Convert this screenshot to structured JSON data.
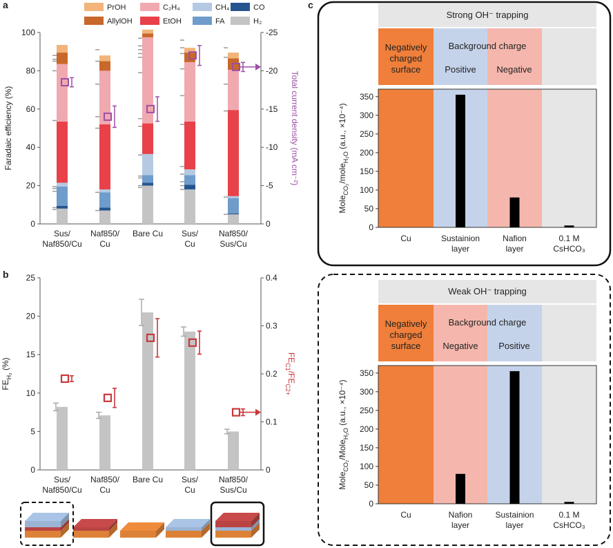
{
  "panel_labels": {
    "a": "a",
    "b": "b",
    "c": "c"
  },
  "colors": {
    "PrOH": "#f2b47a",
    "AllylOH": "#c8682a",
    "C2H4": "#f1a9b0",
    "CH4": "#b5c9e3",
    "CO": "#24558f",
    "EtOH": "#e8414a",
    "FA": "#6f9ccb",
    "H2": "#c4c4c4",
    "orange_block": "#ef7f3a",
    "blue_block": "#c5d3ea",
    "pink_block": "#f5b7ad",
    "grey_block": "#e6e6e6",
    "purple": "#9b4fa6",
    "red_marker": "#c8373c"
  },
  "legend": [
    {
      "key": "PrOH",
      "label": "PrOH"
    },
    {
      "key": "C2H4",
      "label": "C₂H₄"
    },
    {
      "key": "CH4",
      "label": "CH₄"
    },
    {
      "key": "CO",
      "label": "CO"
    },
    {
      "key": "AllylOH",
      "label": "AllylOH"
    },
    {
      "key": "EtOH",
      "label": "EtOH"
    },
    {
      "key": "FA",
      "label": "FA"
    },
    {
      "key": "H2",
      "label": "H₂"
    }
  ],
  "chart_data": [
    {
      "id": "a",
      "type": "bar",
      "stacked": true,
      "categories": [
        [
          "Sus/",
          "Naf850/Cu"
        ],
        [
          "Naf850/",
          "Cu"
        ],
        [
          "Bare Cu"
        ],
        [
          "Sus/",
          "Cu"
        ],
        [
          "Naf850/",
          "Sus/Cu"
        ]
      ],
      "ylabel": "Faradaic efficiency (%)",
      "ylim": [
        0,
        100
      ],
      "yticks": [
        0,
        20,
        40,
        60,
        80,
        100
      ],
      "y2label": "Total current density (mA cm⁻²)",
      "y2lim": [
        0,
        -25
      ],
      "y2ticks": [
        0,
        -5,
        -10,
        -15,
        -20,
        -25
      ],
      "series_order": [
        "H2",
        "CO",
        "FA",
        "CH4",
        "EtOH",
        "C2H4",
        "AllylOH",
        "PrOH"
      ],
      "series": [
        {
          "name": "H2",
          "values": [
            8,
            7,
            20,
            18,
            5
          ]
        },
        {
          "name": "CO",
          "values": [
            1.5,
            1.5,
            1.5,
            2.5,
            0.5
          ]
        },
        {
          "name": "FA",
          "values": [
            10,
            8,
            4,
            5,
            8
          ]
        },
        {
          "name": "CH4",
          "values": [
            2,
            1.5,
            11,
            3,
            1
          ]
        },
        {
          "name": "EtOH",
          "values": [
            32,
            34,
            16,
            25,
            45
          ]
        },
        {
          "name": "C2H4",
          "values": [
            30,
            28,
            45,
            31,
            21
          ]
        },
        {
          "name": "AllylOH",
          "values": [
            6,
            5,
            2,
            5,
            6
          ]
        },
        {
          "name": "PrOH",
          "values": [
            4,
            3,
            2,
            2.5,
            3
          ]
        }
      ],
      "error_bars": [
        {
          "values": [
            7.5,
            8.5,
            17,
            18.5,
            19.5,
            54,
            86,
            80,
            85,
            88
          ]
        },
        {
          "values": [
            7,
            16.5,
            50,
            56,
            73,
            85,
            91
          ]
        },
        {
          "values": [
            19,
            20,
            24,
            25,
            36,
            51,
            55,
            79,
            87,
            89,
            91,
            93,
            97
          ]
        },
        {
          "values": [
            18,
            20,
            22,
            26,
            30,
            52,
            67,
            81,
            89,
            92,
            96
          ]
        },
        {
          "values": [
            5,
            14,
            59,
            73,
            87,
            92
          ]
        }
      ],
      "current_density": [
        -18.5,
        -14,
        -15,
        -22,
        -20.5
      ],
      "current_density_err": [
        0.6,
        1.4,
        1.6,
        1.3,
        0.6
      ],
      "current_arrow_index": 4
    },
    {
      "id": "b",
      "type": "bar",
      "categories": [
        [
          "Sus/",
          "Naf850/Cu"
        ],
        [
          "Naf850/",
          "Cu"
        ],
        [
          "Bare Cu"
        ],
        [
          "Sus/",
          "Cu"
        ],
        [
          "Naf850/",
          "Sus/Cu"
        ]
      ],
      "ylabel": "FE_H2 (%)",
      "ylim": [
        0,
        25
      ],
      "yticks": [
        0,
        5,
        10,
        15,
        20,
        25
      ],
      "values": [
        8.2,
        7.1,
        20.5,
        18,
        5
      ],
      "err": [
        0.5,
        0.4,
        1.7,
        0.6,
        0.3
      ],
      "y2label": "FE_C1/FE_C2+",
      "y2lim": [
        0,
        0.4
      ],
      "y2ticks": [
        0,
        0.1,
        0.2,
        0.3,
        0.4
      ],
      "ratio": [
        0.19,
        0.15,
        0.275,
        0.265,
        0.12
      ],
      "ratio_err": [
        0.006,
        0.02,
        0.04,
        0.024,
        0.007
      ],
      "ratio_arrow_index": 4
    },
    {
      "id": "c-top",
      "type": "bar",
      "title": "Strong OH⁻ trapping",
      "categories": [
        [
          "Cu"
        ],
        [
          "Sustainion",
          "layer"
        ],
        [
          "Nafion",
          "layer"
        ],
        [
          "0.1 M",
          "CsHCO₃"
        ]
      ],
      "band_colors": [
        "orange_block",
        "blue_block",
        "pink_block",
        "grey_block"
      ],
      "values": [
        0,
        355,
        80,
        5
      ],
      "ylabel": "Mole_CO2/mole_H2O (a.u., ×10⁻⁴)",
      "ylim": [
        0,
        370
      ],
      "yticks": [
        0,
        50,
        100,
        150,
        200,
        250,
        300,
        350
      ]
    },
    {
      "id": "c-bottom",
      "type": "bar",
      "title": "Weak OH⁻ trapping",
      "categories": [
        [
          "Cu"
        ],
        [
          "Nafion",
          "layer"
        ],
        [
          "Sustainion",
          "layer"
        ],
        [
          "0.1 M",
          "CsHCO₃"
        ]
      ],
      "band_colors": [
        "orange_block",
        "pink_block",
        "blue_block",
        "grey_block"
      ],
      "values": [
        0,
        80,
        355,
        5
      ],
      "ylabel": "Mole_CO2/Mole_H2O (a.u., ×10⁻⁴)",
      "ylim": [
        0,
        370
      ],
      "yticks": [
        0,
        50,
        100,
        150,
        200,
        250,
        300,
        350
      ]
    }
  ],
  "panel_c": {
    "top": {
      "title": "Strong OH⁻ trapping",
      "surface_label": [
        "Negatively",
        "charged",
        "surface"
      ],
      "background_label": "Background charge",
      "charge_left": "Positive",
      "charge_right": "Negative"
    },
    "bottom": {
      "title": "Weak OH⁻ trapping",
      "surface_label": [
        "Negatively",
        "charged",
        "surface"
      ],
      "background_label": "Background charge",
      "charge_left": "Negative",
      "charge_right": "Positive"
    }
  },
  "axis_text": {
    "a_ylabel": "Faradaic efficiency (%)",
    "a_y2label": "Total current density (mA cm⁻²)",
    "b_ylabel_main": "FE",
    "b_ylabel_sub": "H₂",
    "b_ylabel_unit": " (%)",
    "b_y2label_main": "FE",
    "b_y2label_sub1": "C1",
    "b_y2label_slash": "/FE",
    "b_y2label_sub2": "C2+",
    "c_ylabel_parts": [
      "Mole",
      "CO₂",
      "/mole",
      "H₂O",
      " (a.u., ×10⁻⁴)"
    ],
    "c_ylabel_parts_bottom": [
      "Mole",
      "CO₂",
      "/Mole",
      "H₂O",
      " (a.u., ×10⁻⁴)"
    ]
  },
  "schematics": {
    "layers": [
      [
        "orange",
        "red",
        "blue"
      ],
      [
        "orange",
        "red"
      ],
      [
        "orange"
      ],
      [
        "orange",
        "blue"
      ],
      [
        "orange",
        "blue",
        "red"
      ]
    ],
    "layer_colors": {
      "orange": "#ef8c3c",
      "red": "#c94a4a",
      "blue": "#a9c4e6"
    },
    "boxes": [
      {
        "index": 0,
        "style": "dashed"
      },
      {
        "index": 4,
        "style": "solid"
      }
    ]
  }
}
